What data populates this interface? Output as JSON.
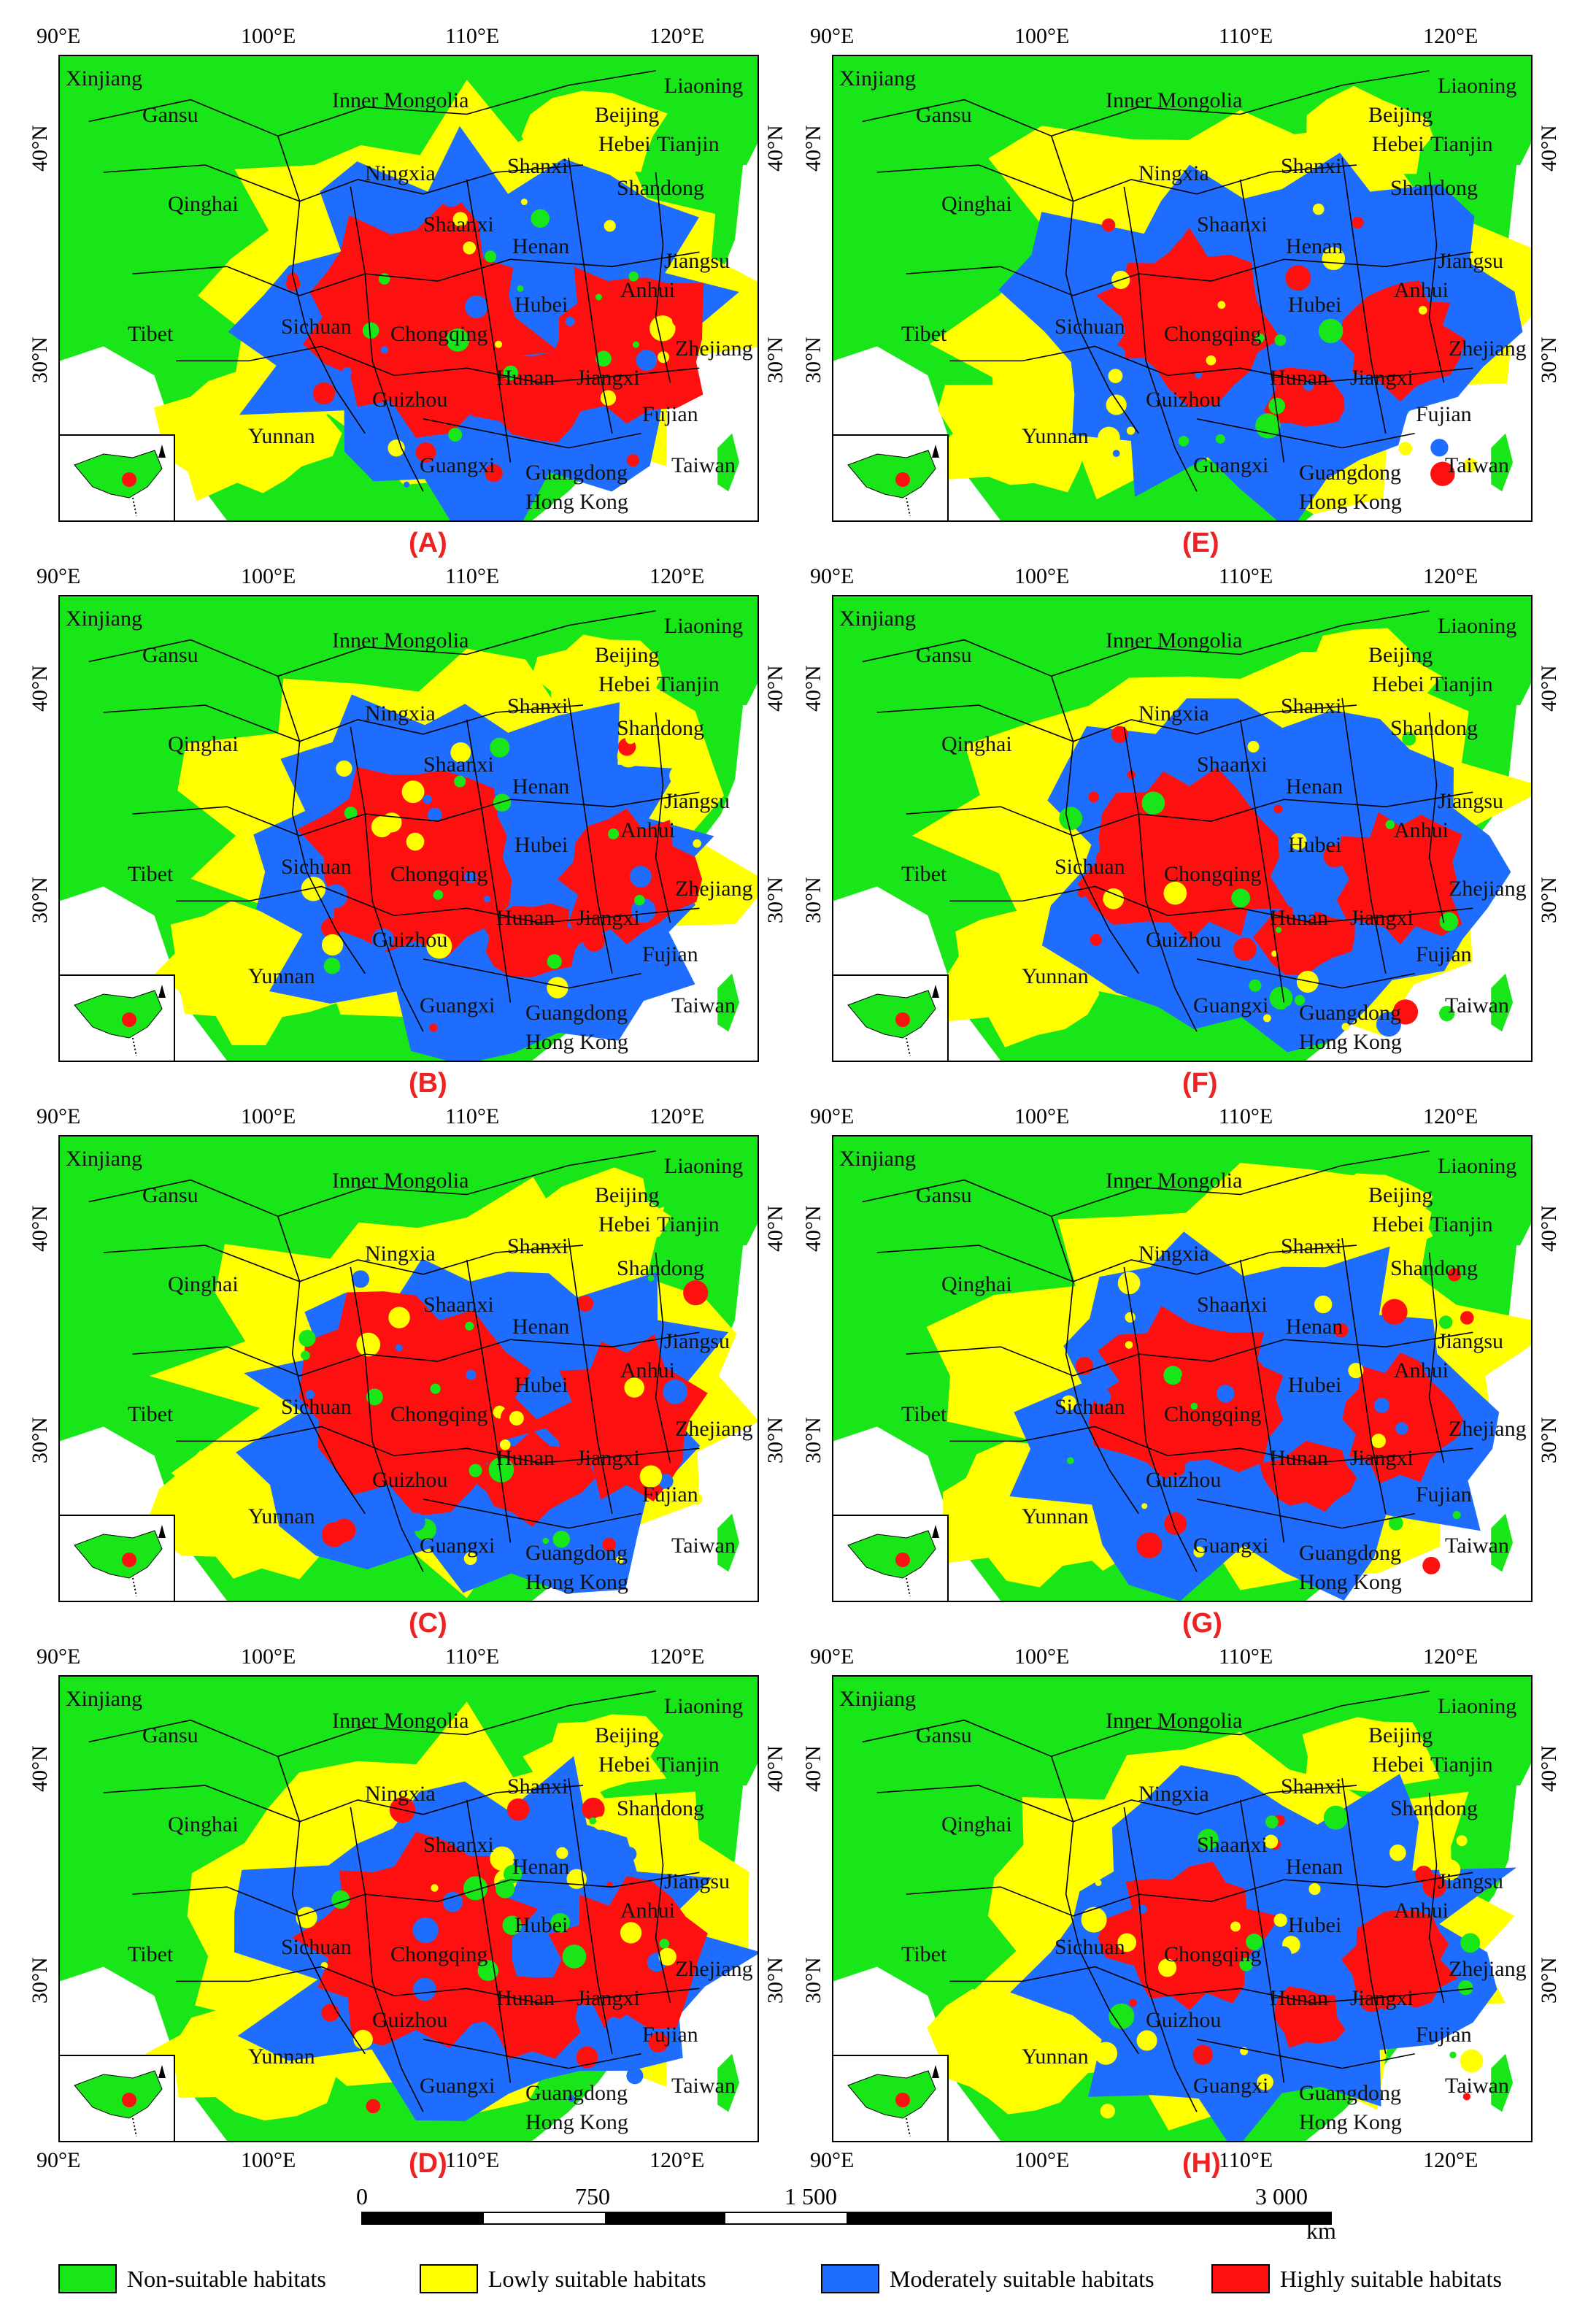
{
  "x_ticks": [
    "90°E",
    "100°E",
    "110°E",
    "120°E"
  ],
  "y_ticks": [
    "40°N",
    "30°N"
  ],
  "provinces": [
    "Xinjiang",
    "Gansu",
    "Inner Mongolia",
    "Liaoning",
    "Beijing",
    "Hebei",
    "Tianjin",
    "Ningxia",
    "Shanxi",
    "Shandong",
    "Qinghai",
    "Shaanxi",
    "Henan",
    "Jiangsu",
    "Anhui",
    "Hubei",
    "Tibet",
    "Sichuan",
    "Chongqing",
    "Zhejiang",
    "Hunan",
    "Jiangxi",
    "Guizhou",
    "Fujian",
    "Yunnan",
    "Guangxi",
    "Guangdong",
    "Taiwan",
    "Hong Kong"
  ],
  "panels": [
    "(A)",
    "(B)",
    "(C)",
    "(D)",
    "(E)",
    "(F)",
    "(G)",
    "(H)"
  ],
  "scale": {
    "labels": [
      "0",
      "750",
      "1 500",
      "3 000"
    ],
    "unit": "km"
  },
  "legend": [
    {
      "label": "Non-suitable habitats",
      "color": "#00e600"
    },
    {
      "label": "Lowly suitable habitats",
      "color": "#ffff00"
    },
    {
      "label": "Moderately suitable habitats",
      "color": "#1e6fff"
    },
    {
      "label": "Highly suitable habitats",
      "color": "#ff0000"
    }
  ],
  "colors": {
    "non": "#19e619",
    "low": "#ffff00",
    "moderate": "#1f6dff",
    "high": "#ff1010",
    "boundary": "#000000"
  }
}
